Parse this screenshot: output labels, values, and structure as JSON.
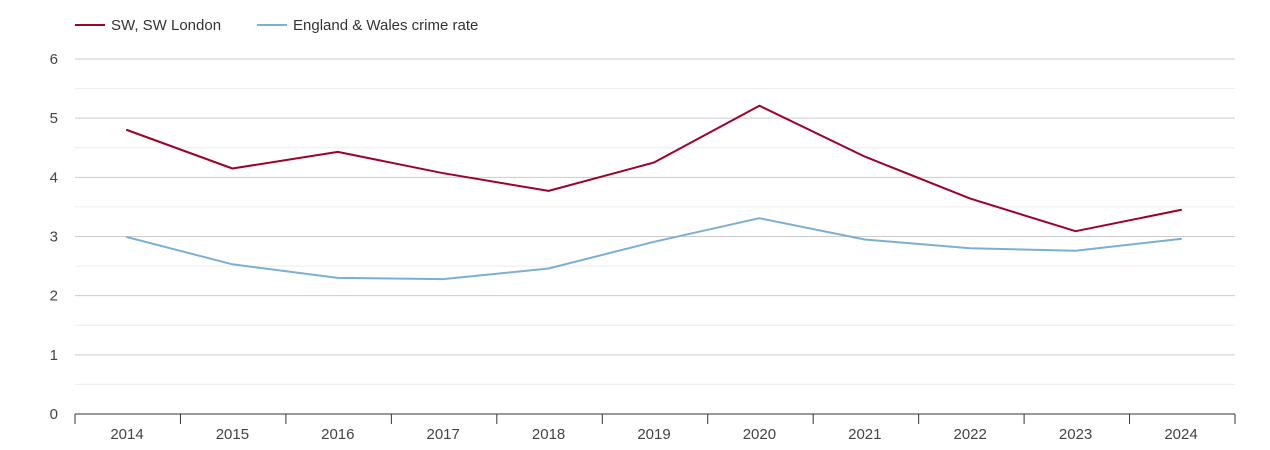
{
  "chart_data": {
    "type": "line",
    "title": "",
    "xlabel": "",
    "ylabel": "",
    "x": [
      "2014",
      "2015",
      "2016",
      "2017",
      "2018",
      "2019",
      "2020",
      "2021",
      "2022",
      "2023",
      "2024"
    ],
    "ylim": [
      0,
      6
    ],
    "yticks": [
      "0",
      "1",
      "2",
      "3",
      "4",
      "5",
      "6"
    ],
    "grid": true,
    "legend_position": "top-left",
    "series": [
      {
        "name": "SW, SW London",
        "color": "#a0002c",
        "values": [
          4.8,
          4.15,
          4.43,
          4.07,
          3.77,
          4.25,
          5.21,
          4.35,
          3.64,
          3.09,
          3.45
        ]
      },
      {
        "name": "England & Wales crime rate",
        "color": "#7bafd4",
        "values": [
          2.99,
          2.53,
          2.3,
          2.28,
          2.46,
          2.91,
          3.31,
          2.95,
          2.8,
          2.76,
          2.96
        ]
      }
    ]
  }
}
